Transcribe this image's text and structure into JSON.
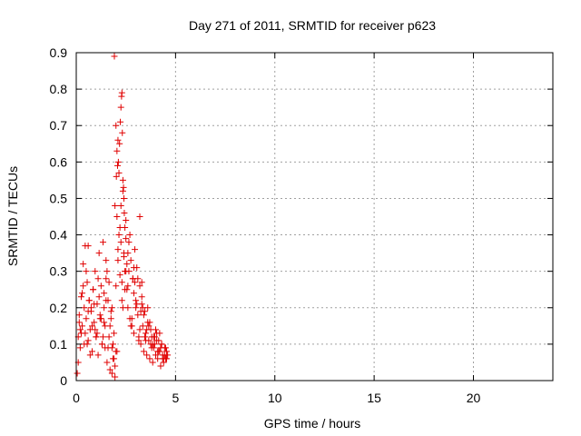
{
  "chart_data": {
    "type": "scatter",
    "title": "Day 271 of 2011, SRMTID for receiver p623",
    "xlabel": "GPS time / hours",
    "ylabel": "SRMTID / TECUs",
    "xlim": [
      0,
      24
    ],
    "ylim": [
      0,
      0.9
    ],
    "xticks": [
      0,
      5,
      10,
      15,
      20
    ],
    "xtick_labels": [
      "0",
      "5",
      "10",
      "15",
      "20"
    ],
    "yticks": [
      0,
      0.1,
      0.2,
      0.3,
      0.4,
      0.5,
      0.6,
      0.7,
      0.8,
      0.9
    ],
    "ytick_labels": [
      "0",
      "0.1",
      "0.2",
      "0.3",
      "0.4",
      "0.5",
      "0.6",
      "0.7",
      "0.8",
      "0.9"
    ],
    "grid": true,
    "marker": "+",
    "color": "#e00000",
    "series": [
      {
        "name": "SRMTID",
        "x": [
          0.05,
          0.1,
          0.15,
          0.2,
          0.25,
          0.3,
          0.35,
          0.4,
          0.45,
          0.5,
          0.55,
          0.6,
          0.65,
          0.7,
          0.75,
          0.8,
          0.85,
          0.9,
          0.95,
          1.0,
          1.05,
          1.1,
          1.15,
          1.2,
          1.25,
          1.3,
          1.35,
          1.4,
          1.45,
          1.5,
          1.55,
          1.6,
          1.65,
          1.7,
          1.75,
          1.8,
          1.85,
          1.9,
          1.95,
          2.0,
          2.05,
          2.1,
          2.15,
          2.2,
          2.25,
          2.3,
          2.35,
          2.4,
          2.45,
          2.5,
          2.55,
          2.6,
          2.65,
          2.7,
          2.75,
          2.8,
          2.85,
          2.9,
          2.95,
          3.0,
          3.05,
          3.1,
          3.15,
          3.2,
          3.25,
          3.3,
          3.35,
          3.4,
          3.45,
          3.5,
          3.55,
          3.6,
          3.65,
          3.7,
          3.75,
          3.8,
          3.85,
          3.9,
          3.95,
          4.0,
          4.05,
          4.1,
          4.15,
          4.2,
          4.25,
          4.3,
          4.35,
          4.4,
          4.45,
          4.5,
          4.55,
          4.6,
          0.1,
          0.2,
          0.3,
          0.4,
          0.5,
          0.6,
          0.7,
          0.8,
          0.9,
          1.0,
          1.1,
          1.2,
          1.3,
          1.4,
          1.5,
          1.6,
          1.7,
          1.8,
          1.9,
          2.0,
          2.1,
          2.2,
          2.3,
          2.4,
          2.5,
          2.6,
          2.7,
          2.8,
          2.9,
          3.0,
          3.1,
          3.2,
          3.3,
          3.4,
          3.5,
          3.6,
          3.7,
          3.8,
          3.9,
          4.0,
          4.1,
          4.2,
          4.3,
          4.4,
          4.5,
          0.15,
          0.35,
          0.55,
          0.75,
          0.95,
          1.15,
          1.35,
          1.55,
          1.75,
          1.95,
          2.15,
          2.35,
          2.55,
          2.75,
          2.95,
          3.15,
          3.35,
          3.55,
          3.75,
          3.95,
          4.15,
          4.35,
          4.55,
          0.25,
          0.45,
          0.65,
          0.85,
          1.05,
          1.25,
          1.45,
          1.65,
          1.85,
          2.05,
          2.25,
          2.45,
          2.65,
          2.85,
          3.05,
          3.25,
          3.45,
          3.65,
          3.85,
          4.05,
          4.25,
          4.45,
          1.92,
          2.0,
          2.05,
          2.1,
          2.12,
          2.18,
          2.22,
          2.25,
          2.28,
          2.3,
          2.32,
          2.35,
          2.38,
          2.4,
          2.42,
          2.45,
          2.5,
          1.95,
          2.02,
          2.08,
          3.2,
          0.6,
          1.4,
          1.5,
          1.8,
          2.6,
          2.9,
          3.3
        ],
        "y": [
          0.02,
          0.12,
          0.18,
          0.09,
          0.23,
          0.15,
          0.32,
          0.2,
          0.13,
          0.17,
          0.27,
          0.11,
          0.22,
          0.14,
          0.19,
          0.08,
          0.25,
          0.16,
          0.3,
          0.12,
          0.21,
          0.07,
          0.35,
          0.18,
          0.26,
          0.1,
          0.38,
          0.2,
          0.15,
          0.28,
          0.05,
          0.22,
          0.12,
          0.03,
          0.19,
          0.02,
          0.1,
          0.13,
          0.01,
          0.26,
          0.08,
          0.33,
          0.4,
          0.29,
          0.48,
          0.22,
          0.52,
          0.35,
          0.3,
          0.44,
          0.25,
          0.2,
          0.38,
          0.17,
          0.33,
          0.15,
          0.28,
          0.13,
          0.36,
          0.22,
          0.31,
          0.18,
          0.12,
          0.26,
          0.1,
          0.21,
          0.15,
          0.08,
          0.19,
          0.13,
          0.07,
          0.16,
          0.11,
          0.06,
          0.14,
          0.09,
          0.05,
          0.12,
          0.1,
          0.07,
          0.13,
          0.06,
          0.11,
          0.08,
          0.04,
          0.1,
          0.07,
          0.05,
          0.09,
          0.06,
          0.08,
          0.07,
          0.05,
          0.14,
          0.24,
          0.1,
          0.3,
          0.19,
          0.07,
          0.15,
          0.21,
          0.12,
          0.28,
          0.17,
          0.1,
          0.24,
          0.33,
          0.09,
          0.15,
          0.2,
          0.06,
          0.08,
          0.36,
          0.42,
          0.27,
          0.34,
          0.3,
          0.26,
          0.4,
          0.17,
          0.24,
          0.2,
          0.28,
          0.14,
          0.23,
          0.18,
          0.11,
          0.2,
          0.16,
          0.12,
          0.09,
          0.14,
          0.08,
          0.13,
          0.1,
          0.06,
          0.09,
          0.16,
          0.26,
          0.1,
          0.2,
          0.14,
          0.23,
          0.12,
          0.3,
          0.17,
          0.04,
          0.57,
          0.2,
          0.32,
          0.15,
          0.27,
          0.11,
          0.2,
          0.14,
          0.1,
          0.12,
          0.08,
          0.06,
          0.06,
          0.13,
          0.37,
          0.22,
          0.25,
          0.13,
          0.17,
          0.09,
          0.27,
          0.06,
          0.45,
          0.38,
          0.25,
          0.3,
          0.28,
          0.21,
          0.19,
          0.12,
          0.15,
          0.1,
          0.11,
          0.09,
          0.07,
          0.89,
          0.7,
          0.63,
          0.66,
          0.6,
          0.65,
          0.71,
          0.75,
          0.78,
          0.79,
          0.68,
          0.55,
          0.53,
          0.5,
          0.46,
          0.42,
          0.39,
          0.48,
          0.56,
          0.59,
          0.45,
          0.37,
          0.16,
          0.22,
          0.09,
          0.35,
          0.31,
          0.27
        ]
      }
    ]
  }
}
